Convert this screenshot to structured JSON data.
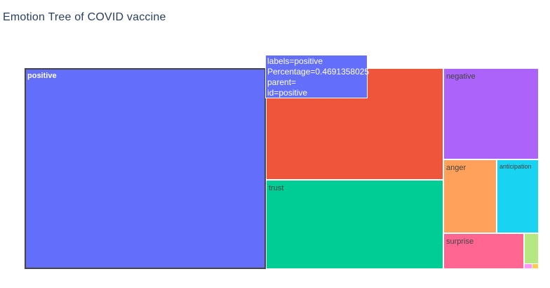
{
  "page_title": "Emotion Tree of COVID vaccine",
  "tooltip": {
    "line1": "labels=positive",
    "line2": "Percentage=0.4691358025",
    "line3": "parent=",
    "line4": "id=positive"
  },
  "chart_data": {
    "type": "treemap",
    "title": "Emotion Tree of COVID vaccine",
    "nodes": [
      {
        "label": "positive",
        "value": 0.4691358025,
        "color": "#636efa",
        "hovered": true
      },
      {
        "label": "",
        "value": 0.18,
        "color": "#ef553b"
      },
      {
        "label": "trust",
        "value": 0.145,
        "color": "#00cc96"
      },
      {
        "label": "negative",
        "value": 0.083,
        "color": "#ab63fa"
      },
      {
        "label": "anger",
        "value": 0.045,
        "color": "#ffa15a"
      },
      {
        "label": "anticipation",
        "value": 0.038,
        "color": "#19d3f3"
      },
      {
        "label": "surprise",
        "value": 0.032,
        "color": "#ff6692"
      },
      {
        "label": "",
        "value": 0.007,
        "color": "#b6e880"
      },
      {
        "label": "",
        "value": 0.001,
        "color": "#ff97ff"
      },
      {
        "label": "",
        "value": 0.0005,
        "color": "#fecb52"
      }
    ]
  }
}
